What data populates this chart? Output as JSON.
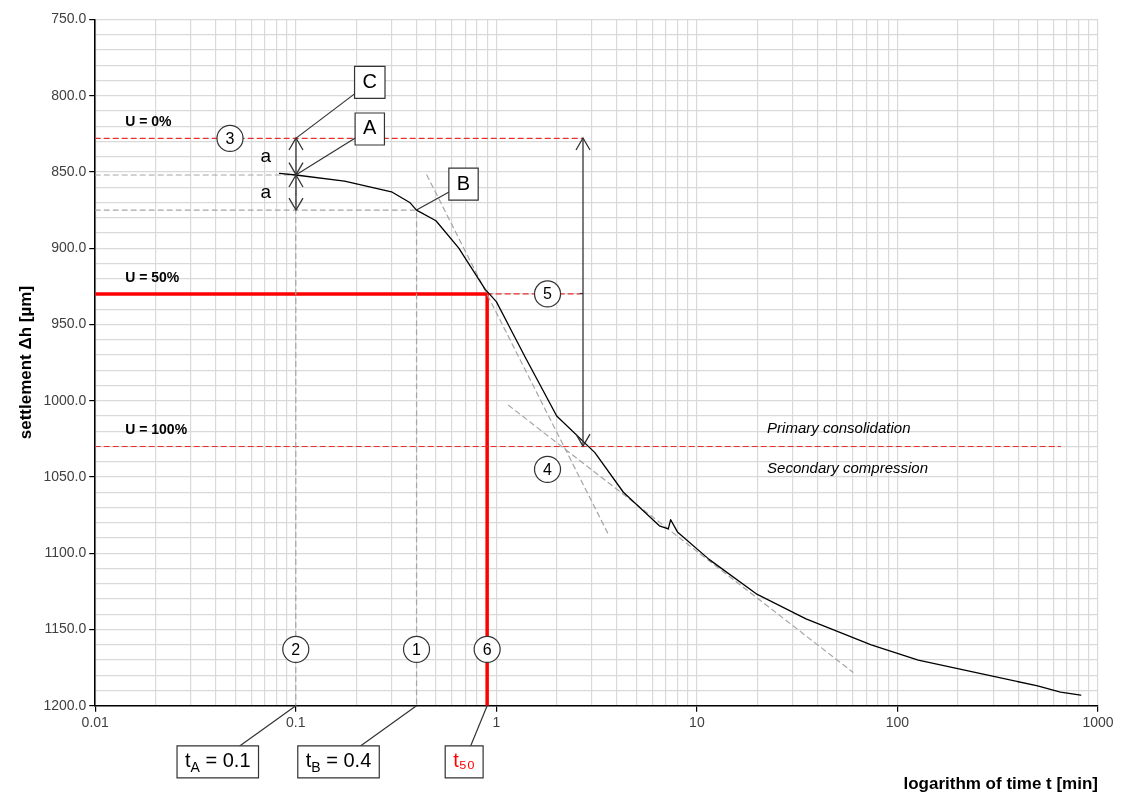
{
  "chart_data": {
    "type": "line",
    "xlabel": "logarithm of time t [min]",
    "ylabel": "settlement Δh [µm]",
    "log": "x",
    "grid": true,
    "marker": "none",
    "xlim": [
      0.01,
      1000
    ],
    "ylim": [
      1200,
      750
    ],
    "xticks": [
      0.01,
      {
        "value": 0.02,
        "label": null
      },
      {
        "value": 0.03,
        "label": null
      },
      {
        "value": 0.04,
        "label": null
      },
      {
        "value": 0.05,
        "label": null
      },
      {
        "value": 0.06,
        "label": null
      },
      {
        "value": 0.07,
        "label": null
      },
      {
        "value": 0.08,
        "label": null
      },
      {
        "value": 0.09,
        "label": null
      },
      0.1,
      {
        "value": 0.2,
        "label": null
      },
      {
        "value": 0.3,
        "label": null
      },
      {
        "value": 0.4,
        "label": null
      },
      {
        "value": 0.5,
        "label": null
      },
      {
        "value": 0.6,
        "label": null
      },
      {
        "value": 0.7,
        "label": null
      },
      {
        "value": 0.8,
        "label": null
      },
      {
        "value": 0.9,
        "label": null
      },
      1,
      {
        "value": 2,
        "label": null
      },
      {
        "value": 3,
        "label": null
      },
      {
        "value": 4,
        "label": null
      },
      {
        "value": 5,
        "label": null
      },
      {
        "value": 6,
        "label": null
      },
      {
        "value": 7,
        "label": null
      },
      {
        "value": 8,
        "label": null
      },
      {
        "value": 9,
        "label": null
      },
      10,
      {
        "value": 20,
        "label": null
      },
      {
        "value": 30,
        "label": null
      },
      {
        "value": 40,
        "label": null
      },
      {
        "value": 50,
        "label": null
      },
      {
        "value": 60,
        "label": null
      },
      {
        "value": 70,
        "label": null
      },
      {
        "value": 80,
        "label": null
      },
      {
        "value": 90,
        "label": null
      },
      100,
      {
        "value": 200,
        "label": null
      },
      {
        "value": 300,
        "label": null
      },
      {
        "value": 400,
        "label": null
      },
      {
        "value": 500,
        "label": null
      },
      {
        "value": 600,
        "label": null
      },
      {
        "value": 700,
        "label": null
      },
      {
        "value": 800,
        "label": null
      },
      {
        "value": 900,
        "label": null
      },
      1000
    ],
    "yticks": [
      {
        "value": 750,
        "label": "750.0"
      },
      {
        "value": 760,
        "label": null
      },
      {
        "value": 770,
        "label": null
      },
      {
        "value": 780,
        "label": null
      },
      {
        "value": 790,
        "label": null
      },
      {
        "value": 800,
        "label": "800.0"
      },
      {
        "value": 810,
        "label": null
      },
      {
        "value": 820,
        "label": null
      },
      {
        "value": 830,
        "label": null
      },
      {
        "value": 840,
        "label": null
      },
      {
        "value": 850,
        "label": "850.0"
      },
      {
        "value": 860,
        "label": null
      },
      {
        "value": 870,
        "label": null
      },
      {
        "value": 880,
        "label": null
      },
      {
        "value": 890,
        "label": null
      },
      {
        "value": 900,
        "label": "900.0"
      },
      {
        "value": 910,
        "label": null
      },
      {
        "value": 920,
        "label": null
      },
      {
        "value": 930,
        "label": null
      },
      {
        "value": 940,
        "label": null
      },
      {
        "value": 950,
        "label": "950.0"
      },
      {
        "value": 960,
        "label": null
      },
      {
        "value": 970,
        "label": null
      },
      {
        "value": 980,
        "label": null
      },
      {
        "value": 990,
        "label": null
      },
      {
        "value": 1000,
        "label": "1000.0"
      },
      {
        "value": 1010,
        "label": null
      },
      {
        "value": 1020,
        "label": null
      },
      {
        "value": 1030,
        "label": null
      },
      {
        "value": 1040,
        "label": null
      },
      {
        "value": 1050,
        "label": "1050.0"
      },
      {
        "value": 1060,
        "label": null
      },
      {
        "value": 1070,
        "label": null
      },
      {
        "value": 1080,
        "label": null
      },
      {
        "value": 1090,
        "label": null
      },
      {
        "value": 1100,
        "label": "1100.0"
      },
      {
        "value": 1110,
        "label": null
      },
      {
        "value": 1120,
        "label": null
      },
      {
        "value": 1130,
        "label": null
      },
      {
        "value": 1140,
        "label": null
      },
      {
        "value": 1150,
        "label": "1150.0"
      },
      {
        "value": 1160,
        "label": null
      },
      {
        "value": 1170,
        "label": null
      },
      {
        "value": 1180,
        "label": null
      },
      {
        "value": 1190,
        "label": null
      },
      {
        "value": 1200,
        "label": "1200.0"
      }
    ],
    "series": [
      {
        "type": "line",
        "color": "#000000",
        "line_style": "solid",
        "x": [
          0.083,
          0.1,
          0.175,
          0.3,
          0.37,
          0.4,
          0.5,
          0.65,
          0.88,
          1.0,
          1.4,
          2.0,
          3.1,
          4.3,
          6.5,
          7.2,
          7.4,
          8.0,
          11.5,
          20,
          35,
          74,
          127,
          286,
          500,
          650,
          820
        ],
        "values": [
          851,
          852,
          856,
          863,
          870,
          875,
          882,
          900,
          927,
          935,
          972,
          1010,
          1034,
          1060,
          1082,
          1084,
          1078,
          1086,
          1104,
          1127,
          1143,
          1160,
          1170,
          1180,
          1187,
          1191,
          1193
        ]
      },
      {
        "type": "line",
        "color": "#a6a6a6",
        "line_style": "dashed",
        "x": [
          0.45,
          3.6
        ],
        "values": [
          852,
          1087
        ]
      },
      {
        "type": "line",
        "color": "#a6a6a6",
        "line_style": "dashed",
        "x": [
          1.15,
          60
        ],
        "values": [
          1003,
          1178
        ]
      },
      {
        "type": "line",
        "color": "#a6a6a6",
        "line_style": "dashed",
        "x": [
          0.01,
          0.1,
          0.1
        ],
        "values": [
          852,
          852,
          1200
        ]
      },
      {
        "type": "line",
        "color": "#a6a6a6",
        "line_style": "dashed",
        "x": [
          0.01,
          0.4,
          0.4
        ],
        "values": [
          875,
          875,
          1200
        ]
      },
      {
        "type": "line",
        "color": "#e83030",
        "line_style": "dashed",
        "x": [
          0.01,
          2.7
        ],
        "values": [
          828,
          828
        ]
      },
      {
        "type": "line",
        "color": "#e83030",
        "line_style": "dashed",
        "x": [
          0.9,
          2.6
        ],
        "values": [
          930,
          930
        ]
      },
      {
        "type": "line",
        "color": "#e83030",
        "line_style": "dashed",
        "x": [
          0.01,
          650
        ],
        "values": [
          1030,
          1030
        ]
      },
      {
        "type": "line",
        "color": "#ff0000",
        "line_style": "solid",
        "x": [
          0.01,
          0.9,
          0.9
        ],
        "values": [
          930,
          930,
          1200
        ]
      }
    ],
    "annotations": [
      "U = 0%",
      "U = 50%",
      "U = 100%",
      "Primary consolidation",
      "Secondary compression",
      {
        "text": "3",
        "x": 0.047,
        "y": 828
      },
      {
        "text": "5",
        "x": 1.8,
        "y": 930
      },
      {
        "text": "4",
        "x": 1.8,
        "y": 1045
      },
      {
        "text": "2",
        "x": 0.1,
        "y": 1163
      },
      {
        "text": "1",
        "x": 0.4,
        "y": 1163
      },
      {
        "text": "6",
        "x": 0.9,
        "y": 1163
      },
      "a",
      "a",
      {
        "text": "C",
        "x": 0.1,
        "y": 828
      },
      {
        "text": "A",
        "x": 0.1,
        "y": 852
      },
      {
        "text": "B",
        "x": 0.4,
        "y": 875
      },
      {
        "text": "t$_{A}$ = 0.1",
        "x": 0.1,
        "y": 1200
      },
      {
        "text": "t$_{B}$ = 0.4",
        "x": 0.4,
        "y": 1200
      },
      {
        "text": "t₅₀",
        "x": 0.9,
        "y": 1200
      }
    ]
  }
}
